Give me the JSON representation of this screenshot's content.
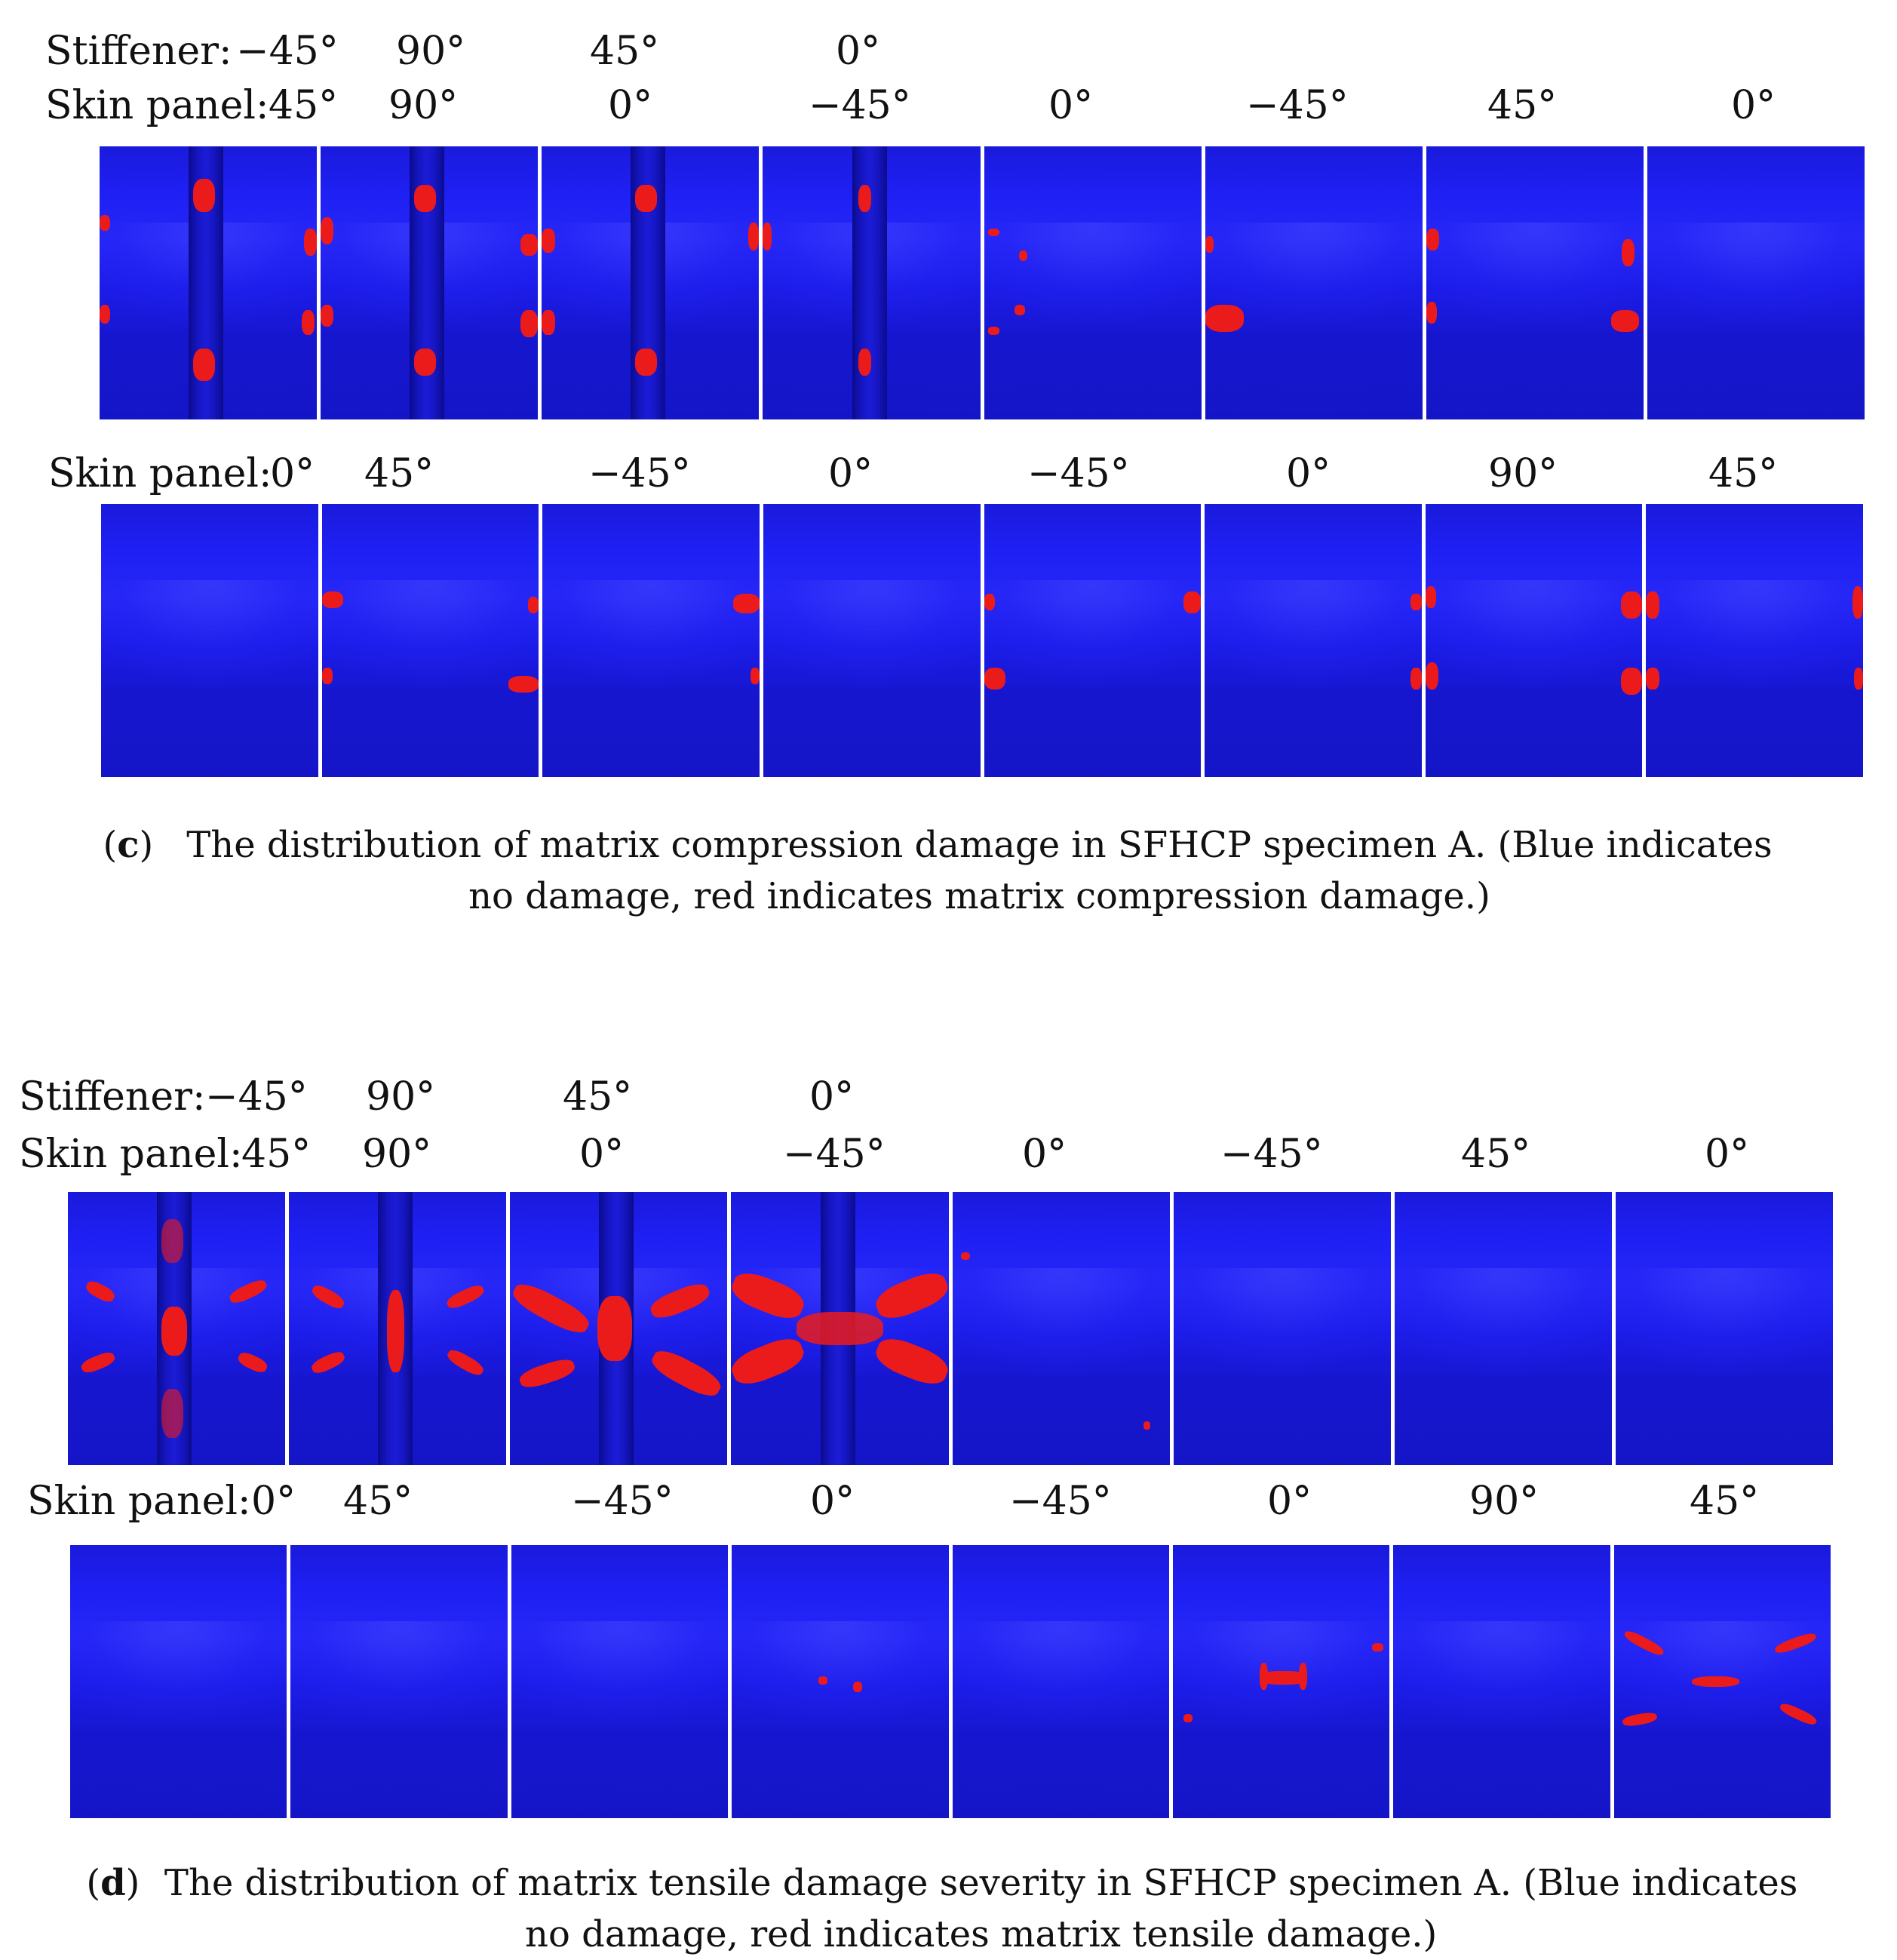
{
  "figure_c": {
    "stiffener_label": "Stiffener:",
    "stiffener_angles": [
      "−45°",
      "90°",
      "45°",
      "0°"
    ],
    "skin_label_top": "Skin panel:",
    "skin_angles_top": [
      "45°",
      "90°",
      "0°",
      "−45°",
      "0°",
      "−45°",
      "45°",
      "0°"
    ],
    "skin_label_bottom": "Skin panel:",
    "skin_angles_bottom": [
      "0°",
      "45°",
      "−45°",
      "0°",
      "−45°",
      "0°",
      "90°",
      "45°"
    ],
    "caption_letter": "c",
    "caption_text": "The distribution of matrix compression damage in SFHCP specimen A. (Blue indicates no damage, red indicates matrix compression damage.)"
  },
  "figure_d": {
    "stiffener_label": "Stiffener:",
    "stiffener_angles": [
      "−45°",
      "90°",
      "45°",
      "0°"
    ],
    "skin_label_top": "Skin panel:",
    "skin_angles_top": [
      "45°",
      "90°",
      "0°",
      "−45°",
      "0°",
      "−45°",
      "45°",
      "0°"
    ],
    "skin_label_bottom": "Skin panel:",
    "skin_angles_bottom": [
      "0°",
      "45°",
      "−45°",
      "0°",
      "−45°",
      "0°",
      "90°",
      "45°"
    ],
    "caption_letter": "d",
    "caption_text": "The distribution of matrix tensile damage severity in SFHCP specimen A. (Blue indicates no damage, red indicates matrix tensile damage.)"
  },
  "colors": {
    "no_damage": "#1f20f0",
    "damage": "#ec1b1b"
  }
}
